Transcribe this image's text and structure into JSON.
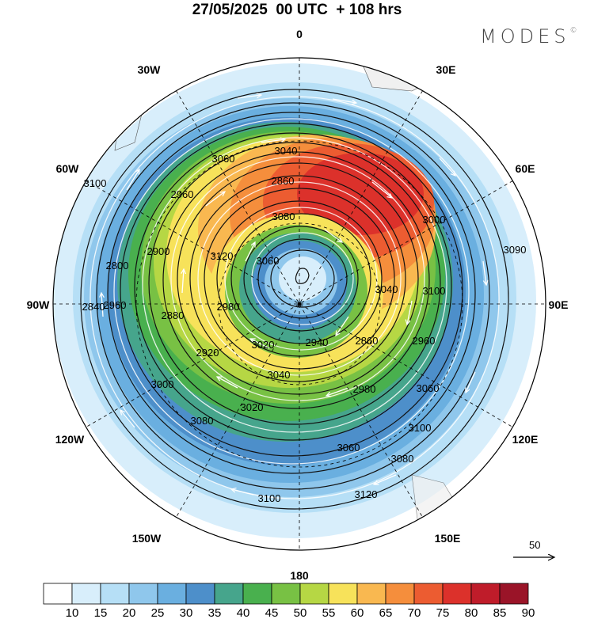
{
  "title": "27/05/2025  00 UTC  + 108 hrs",
  "logo": "MODES",
  "logo_mark": "©",
  "longitude_labels": [
    {
      "id": "lon-0",
      "text": "0"
    },
    {
      "id": "lon-30e",
      "text": "30E"
    },
    {
      "id": "lon-60e",
      "text": "60E"
    },
    {
      "id": "lon-90e",
      "text": "90E"
    },
    {
      "id": "lon-120e",
      "text": "120E"
    },
    {
      "id": "lon-150e",
      "text": "150E"
    },
    {
      "id": "lon-180",
      "text": "180"
    },
    {
      "id": "lon-150w",
      "text": "150W"
    },
    {
      "id": "lon-120w",
      "text": "120W"
    },
    {
      "id": "lon-90w",
      "text": "90W"
    },
    {
      "id": "lon-60w",
      "text": "60W"
    },
    {
      "id": "lon-30w",
      "text": "30W"
    }
  ],
  "reference_vector": {
    "label": "50"
  },
  "contour_labels": [
    "3040",
    "3060",
    "3100",
    "2960",
    "2860",
    "3080",
    "3000",
    "2900",
    "3120",
    "3090",
    "2800",
    "3060",
    "2960",
    "2880",
    "2980",
    "3040",
    "3100",
    "2840",
    "2940",
    "2860",
    "3020",
    "2960",
    "2920",
    "3040",
    "3000",
    "2980",
    "3020",
    "3060",
    "3080",
    "3080",
    "3060",
    "3100",
    "3100",
    "3120"
  ],
  "colorbar": {
    "ticks": [
      "10",
      "15",
      "20",
      "25",
      "30",
      "35",
      "40",
      "45",
      "50",
      "55",
      "60",
      "65",
      "70",
      "75",
      "80",
      "85",
      "90"
    ],
    "colors": [
      "#ffffff",
      "#d8eefb",
      "#b6dff6",
      "#8fc7ec",
      "#6aafe0",
      "#4d8fca",
      "#46a58c",
      "#49b04e",
      "#78c144",
      "#b6d744",
      "#f7e25a",
      "#f9b850",
      "#f58e3c",
      "#ec5c31",
      "#dc312b",
      "#bf1c2a",
      "#9a1428"
    ]
  }
}
